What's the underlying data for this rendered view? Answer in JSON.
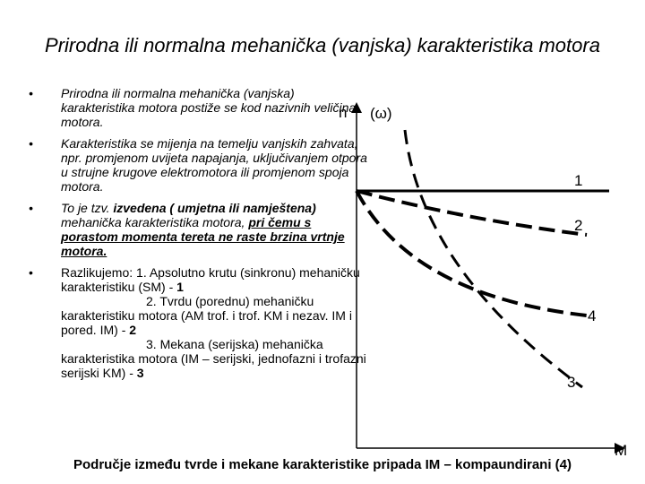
{
  "title": "Prirodna ili normalna mehanička (vanjska) karakteristika motora",
  "bullets": [
    [
      "Prirodna ili normalna mehanička (vanjska) karakteristika motora postiže se kod nazivnih veličina motora."
    ],
    [
      "Karakteristika se mijenja na temelju vanjskih zahvata, npr. promjenom uvijeta napajanja, uključivanjem otpora u strujne krugove elektromotora ili promjenom spoja motora."
    ],
    [
      "To je tzv. ",
      "izvedena ( umjetna ili namještena)",
      " mehanička karakteristika motora, ",
      "pri čemu s porastom momenta tereta ne raste brzina vrtnje motora."
    ],
    [
      "Razlikujemo: 1. Apsolutno krutu (sinkronu) mehaničku karakteristiku (SM) - ",
      "1",
      "2. Tvrdu (porednu) mehaničku karakteristiku motora (AM trof. i trof. KM i nezav. IM i pored. IM) - ",
      "2",
      "3. Mekana (serijska) mehanička karakteristika motora (IM – serijski, jednofazni i trofazni serijski KM) - ",
      "3"
    ]
  ],
  "diagram": {
    "y_axis_label": "n",
    "y_axis_label_alt": "(ω)",
    "x_axis_label": "M",
    "curve_labels": [
      "1",
      "2",
      "4",
      "3"
    ]
  },
  "footer": "Područje između tvrde i mekane karakteristike pripada IM – kompaundirani (4)"
}
